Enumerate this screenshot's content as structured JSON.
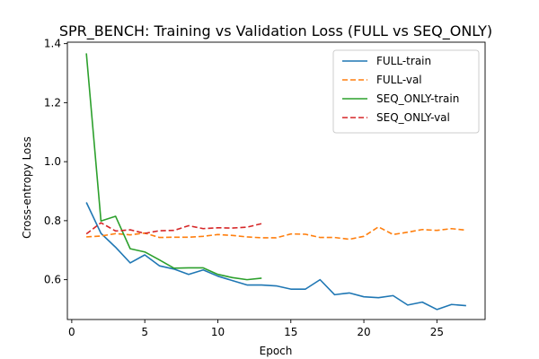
{
  "chart_data": {
    "type": "line",
    "title": "SPR_BENCH: Training vs Validation Loss (FULL vs SEQ_ONLY)",
    "xlabel": "Epoch",
    "ylabel": "Cross-entropy Loss",
    "xlim": [
      -0.3,
      28.3
    ],
    "ylim": [
      0.465,
      1.405
    ],
    "xticks": [
      0,
      5,
      10,
      15,
      20,
      25
    ],
    "yticks": [
      0.6,
      0.8,
      1.0,
      1.2,
      1.4
    ],
    "xtick_labels": [
      "0",
      "5",
      "10",
      "15",
      "20",
      "25"
    ],
    "ytick_labels": [
      "0.6",
      "0.8",
      "1.0",
      "1.2",
      "1.4"
    ],
    "grid": false,
    "legend_position": "top-right",
    "series": [
      {
        "name": "FULL-train",
        "color": "#1f77b4",
        "dash": "solid",
        "x": [
          1,
          2,
          3,
          4,
          5,
          6,
          7,
          8,
          9,
          10,
          11,
          12,
          13,
          14,
          15,
          16,
          17,
          18,
          19,
          20,
          21,
          22,
          23,
          24,
          25,
          26,
          27
        ],
        "y": [
          0.862,
          0.757,
          0.71,
          0.657,
          0.684,
          0.647,
          0.636,
          0.618,
          0.633,
          0.612,
          0.597,
          0.582,
          0.582,
          0.579,
          0.568,
          0.568,
          0.6,
          0.549,
          0.555,
          0.542,
          0.539,
          0.546,
          0.514,
          0.524,
          0.499,
          0.516,
          0.512
        ]
      },
      {
        "name": "FULL-val",
        "color": "#ff7f0e",
        "dash": "dashed",
        "x": [
          1,
          2,
          3,
          4,
          5,
          6,
          7,
          8,
          9,
          10,
          11,
          12,
          13,
          14,
          15,
          16,
          17,
          18,
          19,
          20,
          21,
          22,
          23,
          24,
          25,
          26,
          27
        ],
        "y": [
          0.745,
          0.748,
          0.756,
          0.752,
          0.758,
          0.743,
          0.744,
          0.744,
          0.747,
          0.753,
          0.75,
          0.745,
          0.742,
          0.742,
          0.755,
          0.754,
          0.743,
          0.743,
          0.737,
          0.747,
          0.779,
          0.753,
          0.761,
          0.77,
          0.767,
          0.773,
          0.768
        ]
      },
      {
        "name": "SEQ_ONLY-train",
        "color": "#2ca02c",
        "dash": "solid",
        "x": [
          1,
          2,
          3,
          4,
          5,
          6,
          7,
          8,
          9,
          10,
          11,
          12,
          13
        ],
        "y": [
          1.367,
          0.799,
          0.815,
          0.705,
          0.694,
          0.667,
          0.639,
          0.64,
          0.64,
          0.618,
          0.607,
          0.6,
          0.605
        ]
      },
      {
        "name": "SEQ_ONLY-val",
        "color": "#d62728",
        "dash": "dashed",
        "x": [
          1,
          2,
          3,
          4,
          5,
          6,
          7,
          8,
          9,
          10,
          11,
          12,
          13
        ],
        "y": [
          0.755,
          0.793,
          0.765,
          0.769,
          0.757,
          0.766,
          0.767,
          0.783,
          0.773,
          0.776,
          0.775,
          0.778,
          0.79
        ]
      }
    ]
  }
}
